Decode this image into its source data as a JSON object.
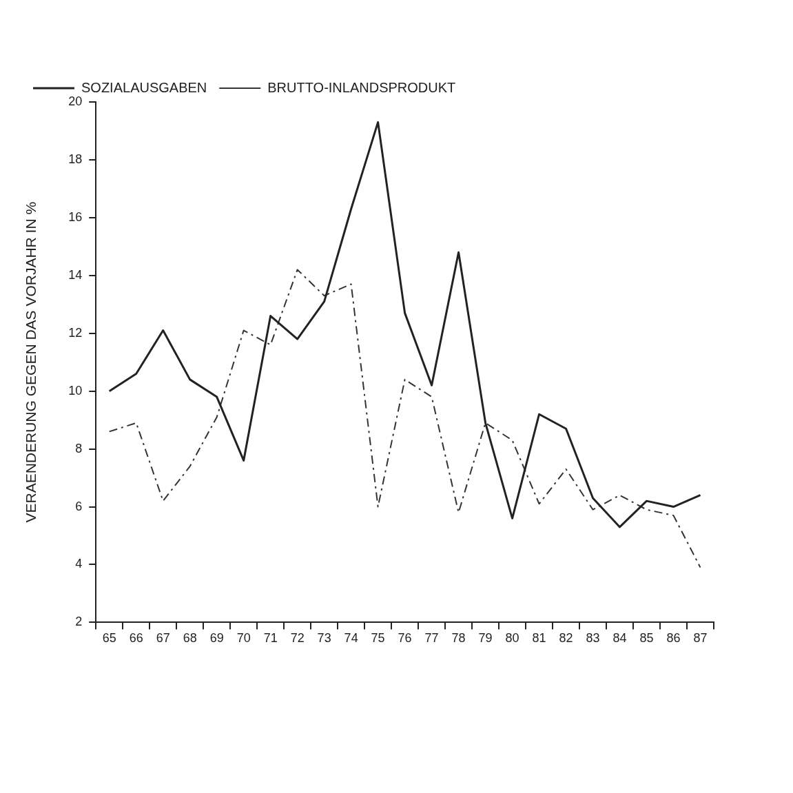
{
  "chart_data": {
    "type": "line",
    "ylabel": "VERAENDERUNG GEGEN DAS VORJAHR IN %",
    "categories": [
      "65",
      "66",
      "67",
      "68",
      "69",
      "70",
      "71",
      "72",
      "73",
      "74",
      "75",
      "76",
      "77",
      "78",
      "79",
      "80",
      "81",
      "82",
      "83",
      "84",
      "85",
      "86",
      "87"
    ],
    "series": [
      {
        "name": "SOZIALAUSGABEN",
        "color": "#222222",
        "line_style": "solid",
        "values": [
          10.0,
          10.6,
          12.1,
          10.4,
          9.8,
          7.6,
          12.6,
          11.8,
          13.1,
          16.3,
          19.3,
          12.7,
          10.2,
          14.8,
          8.9,
          5.6,
          9.2,
          8.7,
          6.3,
          5.3,
          6.2,
          6.0,
          6.4
        ]
      },
      {
        "name": "BRUTTO-INLANDSPRODUKT",
        "color": "#333333",
        "line_style": "dashed",
        "values": [
          8.6,
          8.9,
          6.2,
          7.4,
          9.1,
          12.1,
          11.6,
          14.2,
          13.3,
          13.7,
          6.0,
          10.4,
          9.8,
          5.8,
          8.9,
          8.3,
          6.1,
          7.3,
          5.9,
          6.4,
          5.9,
          5.7,
          3.9
        ]
      }
    ],
    "ylim": [
      2,
      20
    ],
    "yticks": [
      2,
      4,
      6,
      8,
      10,
      12,
      14,
      16,
      18,
      20
    ],
    "grid": false,
    "legend": "top left",
    "marker": "none"
  }
}
